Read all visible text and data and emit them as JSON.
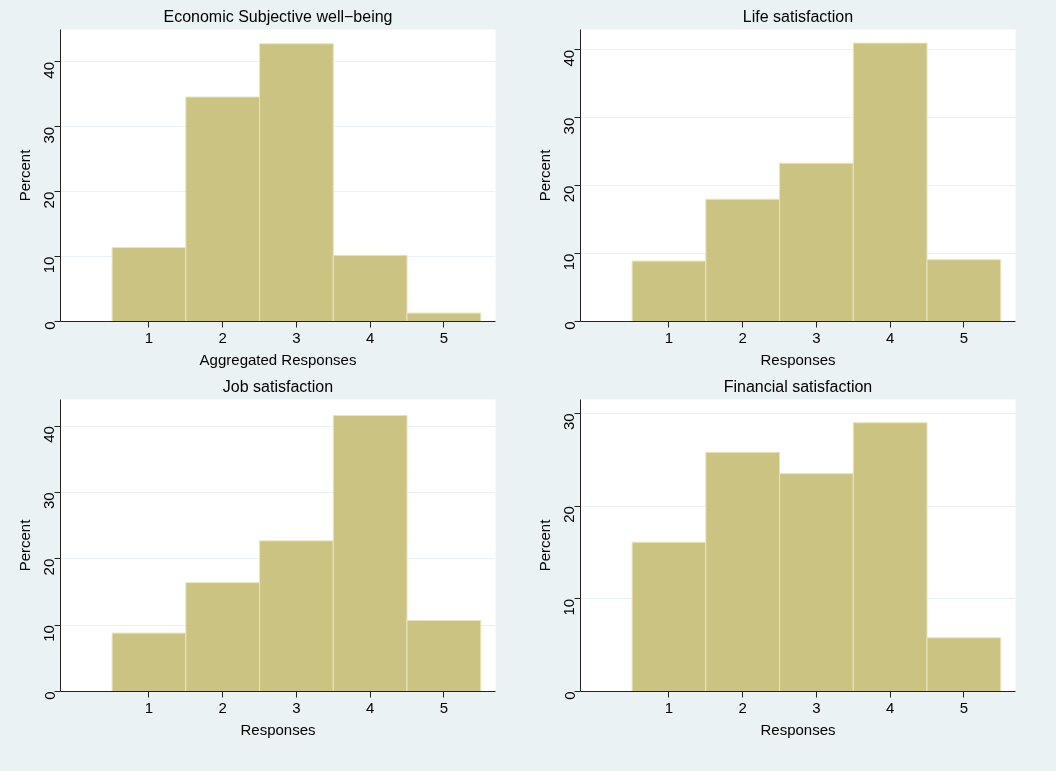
{
  "chart_data": [
    {
      "type": "histogram",
      "title": "Economic Subjective well−being",
      "xlabel": "Aggregated Responses",
      "ylabel": "Percent",
      "bins": [
        0.5,
        1.5,
        2.5,
        3.5,
        4.5,
        5.5
      ],
      "values": [
        11.4,
        34.6,
        42.8,
        10.2,
        1.3
      ],
      "color": "#cbc382",
      "xlim": [
        -0.2,
        5.7
      ],
      "ylim": [
        0,
        45
      ],
      "xticks": [
        1,
        2,
        3,
        4,
        5
      ],
      "yticks": [
        0,
        10,
        20,
        30,
        40
      ],
      "grid": "y"
    },
    {
      "type": "histogram",
      "title": "Life satisfaction",
      "xlabel": "Responses",
      "ylabel": "Percent",
      "bins": [
        0.5,
        1.5,
        2.5,
        3.5,
        4.5,
        5.5
      ],
      "values": [
        8.9,
        18.0,
        23.3,
        41.0,
        9.1
      ],
      "color": "#cbc382",
      "xlim": [
        -0.2,
        5.7
      ],
      "ylim": [
        0,
        43
      ],
      "xticks": [
        1,
        2,
        3,
        4,
        5
      ],
      "yticks": [
        0,
        10,
        20,
        30,
        40
      ],
      "grid": "y"
    },
    {
      "type": "histogram",
      "title": "Job satisfaction",
      "xlabel": "Responses",
      "ylabel": "Percent",
      "bins": [
        0.5,
        1.5,
        2.5,
        3.5,
        4.5,
        5.5
      ],
      "values": [
        8.8,
        16.4,
        22.7,
        41.6,
        10.7
      ],
      "color": "#cbc382",
      "xlim": [
        -0.2,
        5.7
      ],
      "ylim": [
        0,
        44
      ],
      "xticks": [
        1,
        2,
        3,
        4,
        5
      ],
      "yticks": [
        0,
        10,
        20,
        30,
        40
      ],
      "grid": "y"
    },
    {
      "type": "histogram",
      "title": "Financial satisfaction",
      "xlabel": "Responses",
      "ylabel": "Percent",
      "bins": [
        0.5,
        1.5,
        2.5,
        3.5,
        4.5,
        5.5
      ],
      "values": [
        16.1,
        25.8,
        23.5,
        29.0,
        5.8
      ],
      "color": "#cbc382",
      "xlim": [
        -0.2,
        5.7
      ],
      "ylim": [
        0,
        31.5
      ],
      "xticks": [
        1,
        2,
        3,
        4,
        5
      ],
      "yticks": [
        0,
        10,
        20,
        30
      ],
      "grid": "y"
    }
  ]
}
